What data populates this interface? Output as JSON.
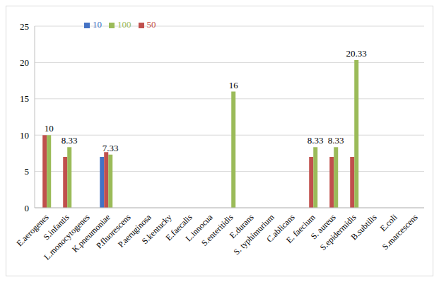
{
  "chart_data": {
    "type": "bar",
    "categories": [
      "E.aerogenes",
      "S.infantis",
      "L.monocytogenes",
      "K.pneumoniae",
      "P.fluorescens",
      "P.aeruginosa",
      "S.kentucky",
      "E.faecalis",
      "L.innocua",
      "S.enteritidis",
      "E.durans",
      "S. typhimurium",
      "C.ablicans",
      "E. faecium",
      "S. aureus",
      "S.epidermidis",
      "B.subtilis",
      "E.coli",
      "S.marcescens"
    ],
    "series": [
      {
        "name": "10",
        "color": "#4472c4",
        "values": [
          0,
          0,
          0,
          7,
          0,
          0,
          0,
          0,
          0,
          0,
          0,
          0,
          0,
          0,
          0,
          0,
          0,
          0,
          0
        ]
      },
      {
        "name": "50",
        "color": "#c0504d",
        "values": [
          10,
          7,
          0,
          7.67,
          0,
          0,
          0,
          0,
          0,
          0,
          0,
          0,
          0,
          7,
          7,
          7,
          0,
          0,
          0
        ]
      },
      {
        "name": "100",
        "color": "#9bbb59",
        "data_labels": true,
        "values": [
          10,
          8.33,
          0,
          7.33,
          0,
          0,
          0,
          0,
          0,
          16,
          0,
          0,
          0,
          8.33,
          8.33,
          20.33,
          0,
          0,
          0
        ]
      }
    ],
    "ylim": [
      0,
      25
    ],
    "yticks": [
      0,
      5,
      10,
      15,
      20,
      25
    ],
    "grid": true,
    "legend": "top left"
  }
}
